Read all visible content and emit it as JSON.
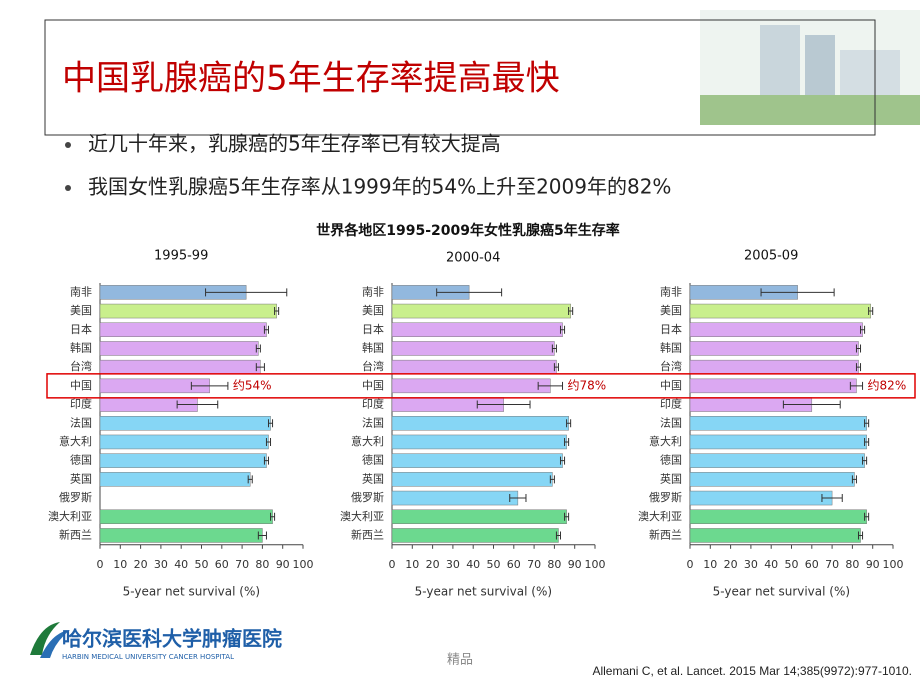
{
  "title": "中国乳腺癌的5年生存率提高最快",
  "bullets": [
    "近几十年来，乳腺癌的5年生存率已有较大提高",
    "我国女性乳腺癌5年生存率从1999年的54%上升至2009年的82%"
  ],
  "figure_title": "世界各地区1995-2009年女性乳腺癌5年生存率",
  "chart_data": [
    {
      "type": "bar",
      "orientation": "horizontal",
      "title": "1995-99",
      "categories": [
        "南非",
        "美国",
        "日本",
        "韩国",
        "台湾",
        "中国",
        "印度",
        "法国",
        "意大利",
        "德国",
        "英国",
        "俄罗斯",
        "澳大利亚",
        "新西兰"
      ],
      "values": [
        72,
        87,
        82,
        78,
        79,
        54,
        48,
        84,
        83,
        82,
        74,
        null,
        85,
        80
      ],
      "errors": [
        20,
        1,
        1,
        1,
        2,
        9,
        10,
        1,
        1,
        1,
        1,
        null,
        1,
        2
      ],
      "colors": [
        "#92b8de",
        "#c9ef8c",
        "#dba8f2",
        "#dba8f2",
        "#dba8f2",
        "#dba8f2",
        "#dba8f2",
        "#86d6f5",
        "#86d6f5",
        "#86d6f5",
        "#86d6f5",
        "#86d6f5",
        "#6cd98f",
        "#6cd98f"
      ],
      "xlim": [
        0,
        100
      ],
      "xticks": [
        0,
        10,
        20,
        30,
        40,
        50,
        60,
        70,
        80,
        90,
        100
      ],
      "xlabel": "5-year net survival (%)",
      "annotation": "约54%",
      "annotation_category": 5
    },
    {
      "type": "bar",
      "orientation": "horizontal",
      "title": "2000-04",
      "categories": [
        "南非",
        "美国",
        "日本",
        "韩国",
        "台湾",
        "中国",
        "印度",
        "法国",
        "意大利",
        "德国",
        "英国",
        "俄罗斯",
        "澳大利亚",
        "新西兰"
      ],
      "values": [
        38,
        88,
        84,
        80,
        81,
        78,
        55,
        87,
        86,
        84,
        79,
        62,
        86,
        82
      ],
      "errors": [
        16,
        1,
        1,
        1,
        1,
        6,
        13,
        1,
        1,
        1,
        1,
        4,
        1,
        1
      ],
      "colors": [
        "#92b8de",
        "#c9ef8c",
        "#dba8f2",
        "#dba8f2",
        "#dba8f2",
        "#dba8f2",
        "#dba8f2",
        "#86d6f5",
        "#86d6f5",
        "#86d6f5",
        "#86d6f5",
        "#86d6f5",
        "#6cd98f",
        "#6cd98f"
      ],
      "xlim": [
        0,
        100
      ],
      "xticks": [
        0,
        10,
        20,
        30,
        40,
        50,
        60,
        70,
        80,
        90,
        100
      ],
      "xlabel": "5-year net survival (%)",
      "annotation": "约78%",
      "annotation_category": 5
    },
    {
      "type": "bar",
      "orientation": "horizontal",
      "title": "2005-09",
      "categories": [
        "南非",
        "美国",
        "日本",
        "韩国",
        "台湾",
        "中国",
        "印度",
        "法国",
        "意大利",
        "德国",
        "英国",
        "俄罗斯",
        "澳大利亚",
        "新西兰"
      ],
      "values": [
        53,
        89,
        85,
        83,
        83,
        82,
        60,
        87,
        87,
        86,
        81,
        70,
        87,
        84
      ],
      "errors": [
        18,
        1,
        1,
        1,
        1,
        3,
        14,
        1,
        1,
        1,
        1,
        5,
        1,
        1
      ],
      "colors": [
        "#92b8de",
        "#c9ef8c",
        "#dba8f2",
        "#dba8f2",
        "#dba8f2",
        "#dba8f2",
        "#dba8f2",
        "#86d6f5",
        "#86d6f5",
        "#86d6f5",
        "#86d6f5",
        "#86d6f5",
        "#6cd98f",
        "#6cd98f"
      ],
      "xlim": [
        0,
        100
      ],
      "xticks": [
        0,
        10,
        20,
        30,
        40,
        50,
        60,
        70,
        80,
        90,
        100
      ],
      "xlabel": "5-year net survival (%)",
      "annotation": "约82%",
      "annotation_category": 5
    }
  ],
  "logo": {
    "name": "哈尔滨医科大学肿瘤医院",
    "english": "HARBIN MEDICAL UNIVERSITY CANCER HOSPITAL"
  },
  "watermark": "精品",
  "citation": "Allemani C, et al. Lancet. 2015 Mar 14;385(9972):977-1010."
}
